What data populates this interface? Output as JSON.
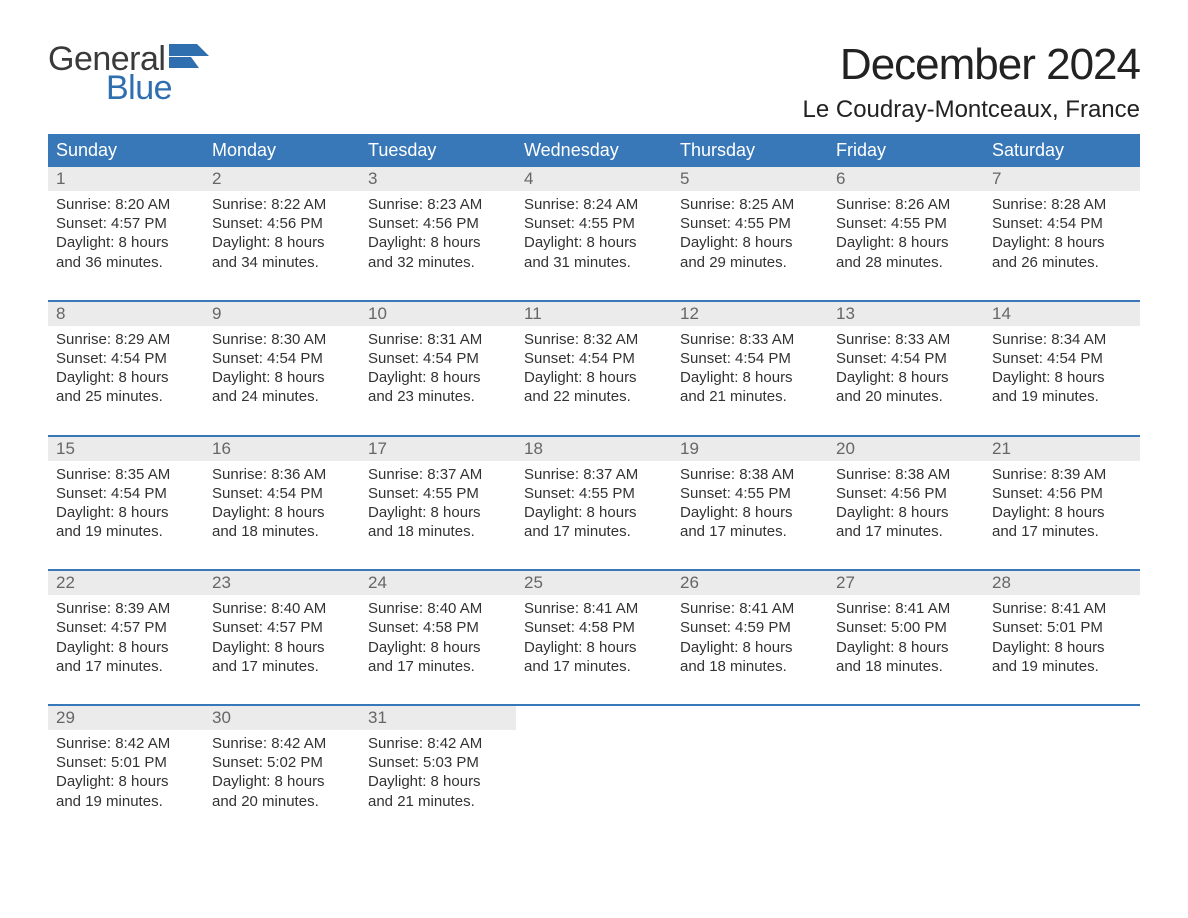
{
  "brand": {
    "word1": "General",
    "word2": "Blue",
    "word1_color": "#3a3a3a",
    "word2_color": "#2f6fb0",
    "flag_color": "#2f6fb0"
  },
  "title": {
    "month": "December 2024",
    "location": "Le Coudray-Montceaux, France"
  },
  "colors": {
    "header_bg": "#3878b8",
    "header_text": "#ffffff",
    "daynum_bg": "#ebebeb",
    "daynum_text": "#666666",
    "body_text": "#333333",
    "rule": "#3878b8",
    "page_bg": "#ffffff"
  },
  "day_headers": [
    "Sunday",
    "Monday",
    "Tuesday",
    "Wednesday",
    "Thursday",
    "Friday",
    "Saturday"
  ],
  "weeks": [
    [
      {
        "n": "1",
        "sr": "Sunrise: 8:20 AM",
        "ss": "Sunset: 4:57 PM",
        "d1": "Daylight: 8 hours",
        "d2": "and 36 minutes."
      },
      {
        "n": "2",
        "sr": "Sunrise: 8:22 AM",
        "ss": "Sunset: 4:56 PM",
        "d1": "Daylight: 8 hours",
        "d2": "and 34 minutes."
      },
      {
        "n": "3",
        "sr": "Sunrise: 8:23 AM",
        "ss": "Sunset: 4:56 PM",
        "d1": "Daylight: 8 hours",
        "d2": "and 32 minutes."
      },
      {
        "n": "4",
        "sr": "Sunrise: 8:24 AM",
        "ss": "Sunset: 4:55 PM",
        "d1": "Daylight: 8 hours",
        "d2": "and 31 minutes."
      },
      {
        "n": "5",
        "sr": "Sunrise: 8:25 AM",
        "ss": "Sunset: 4:55 PM",
        "d1": "Daylight: 8 hours",
        "d2": "and 29 minutes."
      },
      {
        "n": "6",
        "sr": "Sunrise: 8:26 AM",
        "ss": "Sunset: 4:55 PM",
        "d1": "Daylight: 8 hours",
        "d2": "and 28 minutes."
      },
      {
        "n": "7",
        "sr": "Sunrise: 8:28 AM",
        "ss": "Sunset: 4:54 PM",
        "d1": "Daylight: 8 hours",
        "d2": "and 26 minutes."
      }
    ],
    [
      {
        "n": "8",
        "sr": "Sunrise: 8:29 AM",
        "ss": "Sunset: 4:54 PM",
        "d1": "Daylight: 8 hours",
        "d2": "and 25 minutes."
      },
      {
        "n": "9",
        "sr": "Sunrise: 8:30 AM",
        "ss": "Sunset: 4:54 PM",
        "d1": "Daylight: 8 hours",
        "d2": "and 24 minutes."
      },
      {
        "n": "10",
        "sr": "Sunrise: 8:31 AM",
        "ss": "Sunset: 4:54 PM",
        "d1": "Daylight: 8 hours",
        "d2": "and 23 minutes."
      },
      {
        "n": "11",
        "sr": "Sunrise: 8:32 AM",
        "ss": "Sunset: 4:54 PM",
        "d1": "Daylight: 8 hours",
        "d2": "and 22 minutes."
      },
      {
        "n": "12",
        "sr": "Sunrise: 8:33 AM",
        "ss": "Sunset: 4:54 PM",
        "d1": "Daylight: 8 hours",
        "d2": "and 21 minutes."
      },
      {
        "n": "13",
        "sr": "Sunrise: 8:33 AM",
        "ss": "Sunset: 4:54 PM",
        "d1": "Daylight: 8 hours",
        "d2": "and 20 minutes."
      },
      {
        "n": "14",
        "sr": "Sunrise: 8:34 AM",
        "ss": "Sunset: 4:54 PM",
        "d1": "Daylight: 8 hours",
        "d2": "and 19 minutes."
      }
    ],
    [
      {
        "n": "15",
        "sr": "Sunrise: 8:35 AM",
        "ss": "Sunset: 4:54 PM",
        "d1": "Daylight: 8 hours",
        "d2": "and 19 minutes."
      },
      {
        "n": "16",
        "sr": "Sunrise: 8:36 AM",
        "ss": "Sunset: 4:54 PM",
        "d1": "Daylight: 8 hours",
        "d2": "and 18 minutes."
      },
      {
        "n": "17",
        "sr": "Sunrise: 8:37 AM",
        "ss": "Sunset: 4:55 PM",
        "d1": "Daylight: 8 hours",
        "d2": "and 18 minutes."
      },
      {
        "n": "18",
        "sr": "Sunrise: 8:37 AM",
        "ss": "Sunset: 4:55 PM",
        "d1": "Daylight: 8 hours",
        "d2": "and 17 minutes."
      },
      {
        "n": "19",
        "sr": "Sunrise: 8:38 AM",
        "ss": "Sunset: 4:55 PM",
        "d1": "Daylight: 8 hours",
        "d2": "and 17 minutes."
      },
      {
        "n": "20",
        "sr": "Sunrise: 8:38 AM",
        "ss": "Sunset: 4:56 PM",
        "d1": "Daylight: 8 hours",
        "d2": "and 17 minutes."
      },
      {
        "n": "21",
        "sr": "Sunrise: 8:39 AM",
        "ss": "Sunset: 4:56 PM",
        "d1": "Daylight: 8 hours",
        "d2": "and 17 minutes."
      }
    ],
    [
      {
        "n": "22",
        "sr": "Sunrise: 8:39 AM",
        "ss": "Sunset: 4:57 PM",
        "d1": "Daylight: 8 hours",
        "d2": "and 17 minutes."
      },
      {
        "n": "23",
        "sr": "Sunrise: 8:40 AM",
        "ss": "Sunset: 4:57 PM",
        "d1": "Daylight: 8 hours",
        "d2": "and 17 minutes."
      },
      {
        "n": "24",
        "sr": "Sunrise: 8:40 AM",
        "ss": "Sunset: 4:58 PM",
        "d1": "Daylight: 8 hours",
        "d2": "and 17 minutes."
      },
      {
        "n": "25",
        "sr": "Sunrise: 8:41 AM",
        "ss": "Sunset: 4:58 PM",
        "d1": "Daylight: 8 hours",
        "d2": "and 17 minutes."
      },
      {
        "n": "26",
        "sr": "Sunrise: 8:41 AM",
        "ss": "Sunset: 4:59 PM",
        "d1": "Daylight: 8 hours",
        "d2": "and 18 minutes."
      },
      {
        "n": "27",
        "sr": "Sunrise: 8:41 AM",
        "ss": "Sunset: 5:00 PM",
        "d1": "Daylight: 8 hours",
        "d2": "and 18 minutes."
      },
      {
        "n": "28",
        "sr": "Sunrise: 8:41 AM",
        "ss": "Sunset: 5:01 PM",
        "d1": "Daylight: 8 hours",
        "d2": "and 19 minutes."
      }
    ],
    [
      {
        "n": "29",
        "sr": "Sunrise: 8:42 AM",
        "ss": "Sunset: 5:01 PM",
        "d1": "Daylight: 8 hours",
        "d2": "and 19 minutes."
      },
      {
        "n": "30",
        "sr": "Sunrise: 8:42 AM",
        "ss": "Sunset: 5:02 PM",
        "d1": "Daylight: 8 hours",
        "d2": "and 20 minutes."
      },
      {
        "n": "31",
        "sr": "Sunrise: 8:42 AM",
        "ss": "Sunset: 5:03 PM",
        "d1": "Daylight: 8 hours",
        "d2": "and 21 minutes."
      },
      null,
      null,
      null,
      null
    ]
  ]
}
